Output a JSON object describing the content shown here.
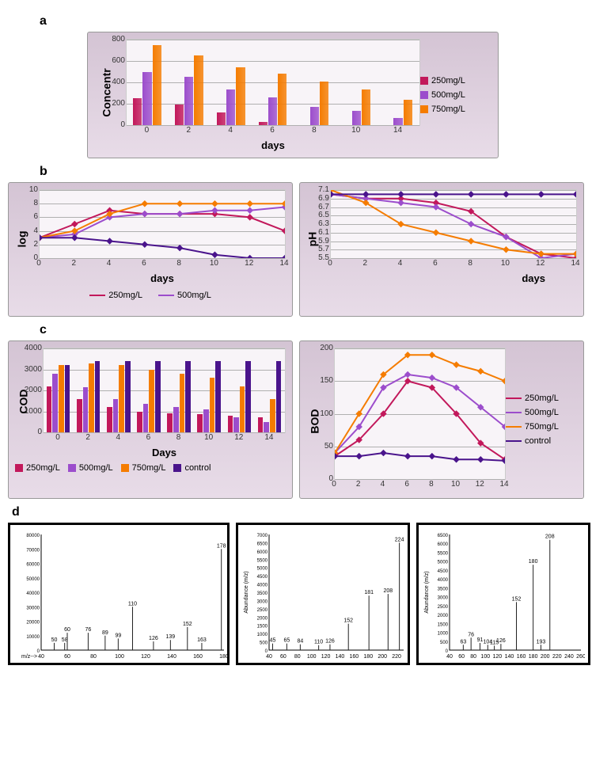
{
  "colors": {
    "series_250": "#c2185b",
    "series_500": "#9c4dcc",
    "series_750": "#f57c00",
    "series_control": "#4a148c",
    "panel_bg_top": "#d4c4d4",
    "panel_bg_bottom": "#e8dce8",
    "plot_bg": "#f8f4f8",
    "grid": "#b0b0b0"
  },
  "panel_a": {
    "label": "a",
    "ylabel": "Concentr",
    "xlabel": "days",
    "categories": [
      "0",
      "2",
      "4",
      "6",
      "8",
      "10",
      "14"
    ],
    "yticks": [
      0,
      200,
      400,
      600,
      800
    ],
    "ylim": [
      0,
      800
    ],
    "series": {
      "250mg/L": [
        250,
        190,
        120,
        30,
        0,
        0,
        0
      ],
      "500mg/L": [
        500,
        450,
        330,
        260,
        170,
        130,
        65
      ],
      "750mg/L": [
        750,
        650,
        540,
        480,
        410,
        330,
        240
      ]
    },
    "series_colors": {
      "250mg/L": "#c2185b",
      "500mg/L": "#9c4dcc",
      "750mg/L": "#f57c00"
    }
  },
  "panel_b": {
    "label": "b",
    "left": {
      "ylabel": "log",
      "xlabel": "days",
      "xticks": [
        0,
        2,
        4,
        6,
        8,
        10,
        12,
        14
      ],
      "yticks": [
        0,
        2,
        4,
        6,
        8,
        10
      ],
      "ylim": [
        0,
        10
      ],
      "series": {
        "250mg/L": [
          3,
          5,
          7,
          6.5,
          6.5,
          6.5,
          6,
          4
        ],
        "500mg/L": [
          3,
          3.5,
          6,
          6.5,
          6.5,
          7,
          7,
          7.5
        ],
        "750mg/L": [
          3,
          4,
          6.5,
          8,
          8,
          8,
          8,
          8
        ],
        "control": [
          3,
          3,
          2.5,
          2,
          1.5,
          0.5,
          0,
          0
        ]
      }
    },
    "right": {
      "ylabel": "pH",
      "xlabel": "days",
      "xticks": [
        0,
        2,
        4,
        6,
        8,
        10,
        12,
        14
      ],
      "yticks": [
        5.5,
        5.7,
        5.9,
        6.1,
        6.3,
        6.5,
        6.7,
        6.9,
        7.1
      ],
      "ylim": [
        5.5,
        7.1
      ],
      "series": {
        "250mg/L": [
          7.0,
          6.9,
          6.9,
          6.8,
          6.6,
          6.0,
          5.6,
          5.5
        ],
        "500mg/L": [
          7.0,
          6.9,
          6.8,
          6.7,
          6.3,
          6.0,
          5.5,
          5.6
        ],
        "750mg/L": [
          7.1,
          6.8,
          6.3,
          6.1,
          5.9,
          5.7,
          5.6,
          5.6
        ],
        "control": [
          7.0,
          7.0,
          7.0,
          7.0,
          7.0,
          7.0,
          7.0,
          7.0
        ]
      }
    },
    "legend_items": [
      "250mg/L",
      "500mg/L"
    ],
    "series_colors": {
      "250mg/L": "#c2185b",
      "500mg/L": "#9c4dcc",
      "750mg/L": "#f57c00",
      "control": "#4a148c"
    }
  },
  "panel_c": {
    "label": "c",
    "left": {
      "ylabel": "COD",
      "xlabel": "Days",
      "categories": [
        "0",
        "2",
        "4",
        "6",
        "8",
        "10",
        "12",
        "14"
      ],
      "yticks": [
        0,
        1000,
        2000,
        3000,
        4000
      ],
      "ylim": [
        0,
        4000
      ],
      "series": {
        "250mg/L": [
          2200,
          1600,
          1200,
          1000,
          900,
          850,
          800,
          700
        ],
        "500mg/L": [
          2800,
          2150,
          1600,
          1350,
          1200,
          1100,
          700,
          500
        ],
        "750mg/L": [
          3200,
          3300,
          3200,
          3000,
          2800,
          2600,
          2200,
          1600
        ],
        "control": [
          3200,
          3400,
          3400,
          3400,
          3400,
          3400,
          3400,
          3400
        ]
      },
      "legend_items": [
        "250mg/L",
        "500mg/L",
        "750mg/L",
        "control"
      ]
    },
    "right": {
      "ylabel": "BOD",
      "xlabel": "days",
      "xticks": [
        0,
        2,
        4,
        6,
        8,
        10,
        14
      ],
      "yticks": [
        0,
        50,
        100,
        150,
        200
      ],
      "ylim": [
        0,
        200
      ],
      "series": {
        "250mg/L": [
          35,
          60,
          100,
          150,
          140,
          100,
          55,
          30
        ],
        "500mg/L": [
          40,
          80,
          140,
          160,
          155,
          140,
          110,
          80
        ],
        "750mg/L": [
          40,
          100,
          160,
          190,
          190,
          175,
          165,
          150
        ],
        "control": [
          35,
          35,
          40,
          35,
          35,
          30,
          30,
          28
        ]
      },
      "legend_items": [
        "250mg/L",
        "500mg/L",
        "750mg/L",
        "control"
      ]
    },
    "series_colors": {
      "250mg/L": "#c2185b",
      "500mg/L": "#9c4dcc",
      "750mg/L": "#f57c00",
      "control": "#4a148c"
    }
  },
  "panel_d": {
    "label": "d",
    "spectra": [
      {
        "ylabel": "",
        "xlabel": "m/z-->",
        "xlim": [
          40,
          180
        ],
        "ylim": [
          0,
          80000
        ],
        "yticks": [
          0,
          10000,
          20000,
          30000,
          40000,
          50000,
          60000,
          70000,
          80000
        ],
        "xticks": [
          40,
          60,
          80,
          100,
          120,
          140,
          160,
          180
        ],
        "peaks": [
          {
            "mz": 50,
            "abund": 5000,
            "label": "50"
          },
          {
            "mz": 58,
            "abund": 5000,
            "label": "58"
          },
          {
            "mz": 60,
            "abund": 12000,
            "label": "60"
          },
          {
            "mz": 76,
            "abund": 12000,
            "label": "76"
          },
          {
            "mz": 89,
            "abund": 10000,
            "label": "89"
          },
          {
            "mz": 99,
            "abund": 8000,
            "label": "99"
          },
          {
            "mz": 110,
            "abund": 30000,
            "label": "110"
          },
          {
            "mz": 126,
            "abund": 6000,
            "label": "126"
          },
          {
            "mz": 139,
            "abund": 7000,
            "label": "139"
          },
          {
            "mz": 152,
            "abund": 16000,
            "label": "152"
          },
          {
            "mz": 163,
            "abund": 5000,
            "label": "163"
          },
          {
            "mz": 178,
            "abund": 70000,
            "label": "178"
          }
        ]
      },
      {
        "ylabel": "Abundance (m/z)",
        "xlim": [
          40,
          230
        ],
        "ylim": [
          0,
          7000
        ],
        "yticks": [
          0,
          500,
          1000,
          1500,
          2000,
          2500,
          3000,
          3500,
          4000,
          4500,
          5000,
          5500,
          6000,
          6500,
          7000
        ],
        "xticks": [
          40,
          60,
          80,
          100,
          120,
          140,
          160,
          180,
          200,
          220
        ],
        "peaks": [
          {
            "mz": 45,
            "abund": 400,
            "label": "45"
          },
          {
            "mz": 65,
            "abund": 400,
            "label": "65"
          },
          {
            "mz": 84,
            "abund": 350,
            "label": "84"
          },
          {
            "mz": 110,
            "abund": 300,
            "label": "110"
          },
          {
            "mz": 126,
            "abund": 350,
            "label": "126"
          },
          {
            "mz": 152,
            "abund": 1600,
            "label": "152"
          },
          {
            "mz": 181,
            "abund": 3300,
            "label": "181"
          },
          {
            "mz": 208,
            "abund": 3400,
            "label": "208"
          },
          {
            "mz": 224,
            "abund": 6500,
            "label": "224"
          }
        ]
      },
      {
        "ylabel": "Abundance (m/z)",
        "xlim": [
          40,
          260
        ],
        "ylim": [
          0,
          6500
        ],
        "yticks": [
          0,
          500,
          1000,
          1500,
          2000,
          2500,
          3000,
          3500,
          4000,
          4500,
          5000,
          5500,
          6000,
          6500
        ],
        "xticks": [
          40,
          60,
          80,
          100,
          120,
          140,
          160,
          180,
          200,
          220,
          240,
          260
        ],
        "peaks": [
          {
            "mz": 63,
            "abund": 300,
            "label": "63"
          },
          {
            "mz": 76,
            "abund": 700,
            "label": "76"
          },
          {
            "mz": 91,
            "abund": 400,
            "label": "91"
          },
          {
            "mz": 104,
            "abund": 300,
            "label": "104"
          },
          {
            "mz": 115,
            "abund": 250,
            "label": "115"
          },
          {
            "mz": 126,
            "abund": 350,
            "label": "126"
          },
          {
            "mz": 152,
            "abund": 2700,
            "label": "152"
          },
          {
            "mz": 180,
            "abund": 4800,
            "label": "180"
          },
          {
            "mz": 193,
            "abund": 300,
            "label": "193"
          },
          {
            "mz": 208,
            "abund": 6200,
            "label": "208"
          }
        ]
      }
    ]
  }
}
